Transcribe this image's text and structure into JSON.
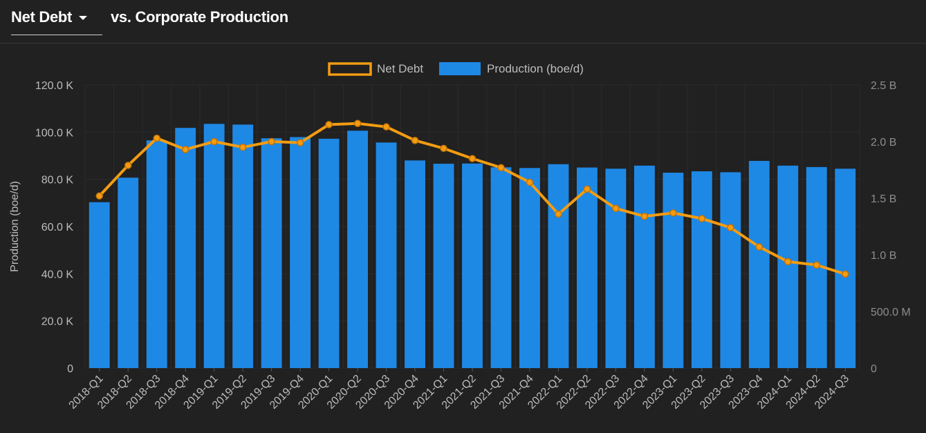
{
  "header": {
    "metric_selector": "Net Debt",
    "title_rest": "vs. Corporate Production"
  },
  "colors": {
    "background": "#212121",
    "bar": "#1e88e5",
    "line": "#f39c12",
    "axis_text": "#bdbdbd",
    "grid": "#2c2c2c"
  },
  "chart_data": {
    "type": "bar",
    "categories": [
      "2018-Q1",
      "2018-Q2",
      "2018-Q3",
      "2018-Q4",
      "2019-Q1",
      "2019-Q2",
      "2019-Q3",
      "2019-Q4",
      "2020-Q1",
      "2020-Q2",
      "2020-Q3",
      "2020-Q4",
      "2021-Q1",
      "2021-Q2",
      "2021-Q3",
      "2021-Q4",
      "2022-Q1",
      "2022-Q2",
      "2022-Q3",
      "2022-Q4",
      "2023-Q1",
      "2023-Q2",
      "2023-Q3",
      "2023-Q4",
      "2024-Q1",
      "2024-Q2",
      "2024-Q3"
    ],
    "series": [
      {
        "name": "Production (boe/d)",
        "type": "bar",
        "axis": "left",
        "values": [
          70300,
          80700,
          96500,
          101800,
          103500,
          103200,
          97400,
          97900,
          97200,
          100600,
          95600,
          88000,
          86600,
          86700,
          85100,
          84800,
          86400,
          85000,
          84500,
          85800,
          82800,
          83400,
          83000,
          87800,
          85800,
          85200,
          84500
        ]
      },
      {
        "name": "Net Debt",
        "type": "line",
        "axis": "right",
        "values": [
          1520000000,
          1790000000,
          2030000000,
          1930000000,
          2000000000,
          1950000000,
          2000000000,
          1990000000,
          2150000000,
          2160000000,
          2130000000,
          2010000000,
          1940000000,
          1850000000,
          1770000000,
          1640000000,
          1360000000,
          1580000000,
          1410000000,
          1340000000,
          1370000000,
          1320000000,
          1240000000,
          1070000000,
          940000000,
          910000000,
          830000000
        ]
      }
    ],
    "legend": [
      "Net Debt",
      "Production (boe/d)"
    ],
    "legend_position": "top-center",
    "ylabel": "Production (boe/d)",
    "ylim": [
      0,
      120000
    ],
    "y_ticks": [
      "0",
      "20.0 K",
      "40.0 K",
      "60.0 K",
      "80.0 K",
      "100.0 K",
      "120.0 K"
    ],
    "y2lim": [
      0,
      2500000000
    ],
    "y2_ticks": [
      "0",
      "500.0 M",
      "1.0 B",
      "1.5 B",
      "2.0 B",
      "2.5 B"
    ],
    "grid": true
  }
}
